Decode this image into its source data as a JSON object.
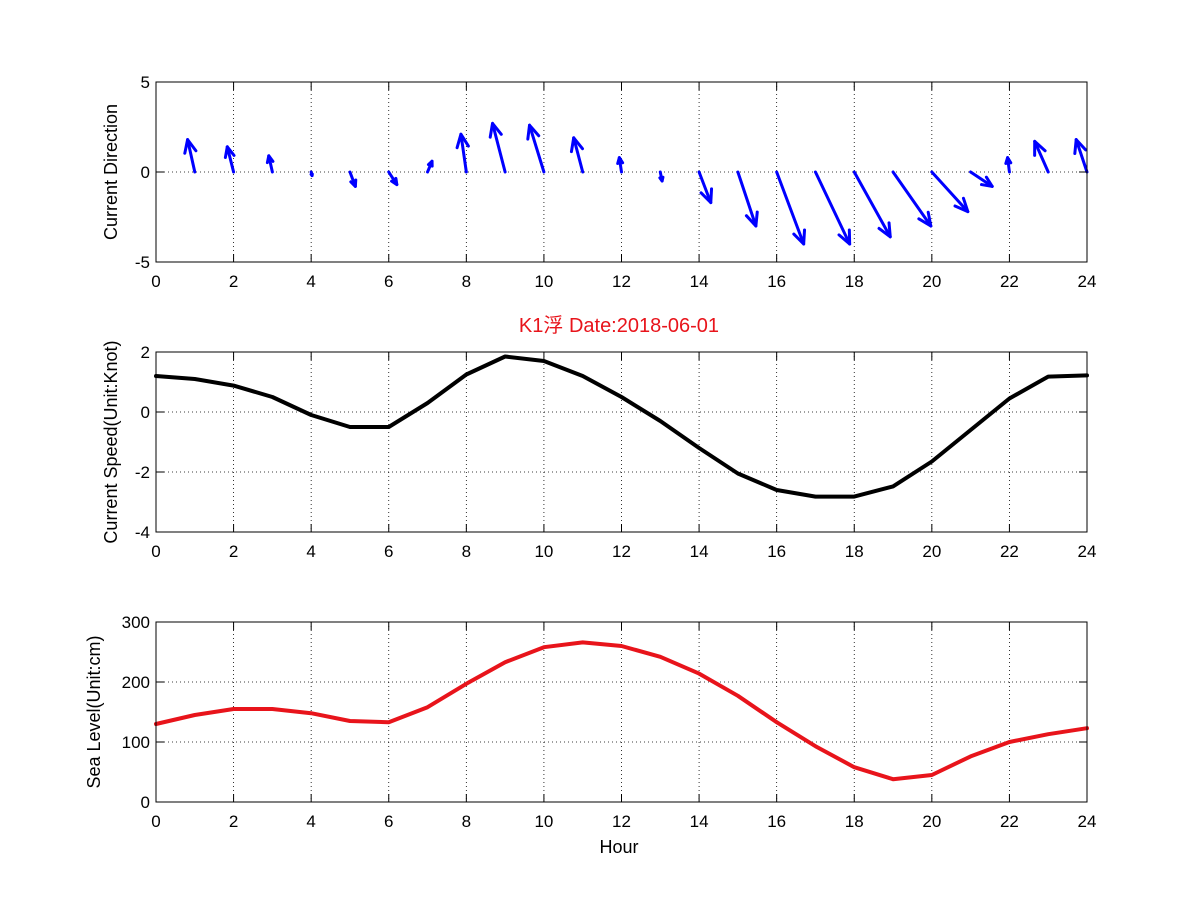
{
  "figure": {
    "title": "K1浮 Date:2018-06-01",
    "title_color": "#e8141b"
  },
  "chart_data": [
    {
      "type": "quiver",
      "ylabel": "Current Direction",
      "xlabel": "",
      "xlim": [
        0,
        24
      ],
      "ylim": [
        -5,
        5
      ],
      "xticks": [
        0,
        2,
        4,
        6,
        8,
        10,
        12,
        14,
        16,
        18,
        20,
        22,
        24
      ],
      "yticks": [
        -5,
        0,
        5
      ],
      "grid": true,
      "color": "#0000ff",
      "x": [
        1,
        2,
        3,
        4,
        5,
        6,
        7,
        8,
        9,
        10,
        11,
        12,
        13,
        14,
        15,
        16,
        17,
        18,
        19,
        20,
        21,
        22,
        23,
        24
      ],
      "u": [
        -0.4,
        -0.35,
        -0.2,
        0.05,
        0.3,
        0.45,
        0.25,
        -0.3,
        -0.7,
        -0.8,
        -0.5,
        -0.12,
        0.1,
        0.65,
        1.0,
        1.5,
        1.9,
        2.0,
        2.1,
        2.0,
        1.2,
        -0.1,
        -0.75,
        -0.6
      ],
      "v": [
        1.8,
        1.4,
        0.9,
        -0.2,
        -0.8,
        -0.7,
        0.6,
        2.1,
        2.7,
        2.6,
        1.9,
        0.8,
        -0.5,
        -1.7,
        -3.0,
        -4.0,
        -4.0,
        -3.6,
        -3.0,
        -2.2,
        -0.8,
        0.8,
        1.7,
        1.8
      ]
    },
    {
      "type": "line",
      "ylabel": "Current Speed(Unit:Knot)",
      "xlabel": "",
      "xlim": [
        0,
        24
      ],
      "ylim": [
        -4,
        2
      ],
      "xticks": [
        0,
        2,
        4,
        6,
        8,
        10,
        12,
        14,
        16,
        18,
        20,
        22,
        24
      ],
      "yticks": [
        -4,
        -2,
        0,
        2
      ],
      "grid": true,
      "series": [
        {
          "color": "#000000",
          "x": [
            0,
            1,
            2,
            3,
            4,
            5,
            6,
            7,
            8,
            9,
            10,
            11,
            12,
            13,
            14,
            15,
            16,
            17,
            18,
            19,
            20,
            21,
            22,
            23,
            24
          ],
          "values": [
            1.2,
            1.1,
            0.88,
            0.5,
            -0.1,
            -0.5,
            -0.5,
            0.3,
            1.25,
            1.85,
            1.7,
            1.2,
            0.5,
            -0.3,
            -1.2,
            -2.05,
            -2.6,
            -2.82,
            -2.82,
            -2.48,
            -1.65,
            -0.6,
            0.45,
            1.18,
            1.22
          ]
        }
      ]
    },
    {
      "type": "line",
      "ylabel": "Sea Level(Unit:cm)",
      "xlabel": "Hour",
      "xlim": [
        0,
        24
      ],
      "ylim": [
        0,
        300
      ],
      "xticks": [
        0,
        2,
        4,
        6,
        8,
        10,
        12,
        14,
        16,
        18,
        20,
        22,
        24
      ],
      "yticks": [
        0,
        100,
        200,
        300
      ],
      "grid": true,
      "series": [
        {
          "color": "#e8141b",
          "x": [
            0,
            1,
            2,
            3,
            4,
            5,
            6,
            7,
            8,
            9,
            10,
            11,
            12,
            13,
            14,
            15,
            16,
            17,
            18,
            19,
            20,
            21,
            22,
            23,
            24
          ],
          "values": [
            130,
            145,
            155,
            155,
            148,
            135,
            133,
            158,
            197,
            233,
            258,
            266,
            260,
            242,
            214,
            177,
            133,
            93,
            58,
            38,
            45,
            76,
            100,
            113,
            123
          ]
        }
      ]
    }
  ]
}
